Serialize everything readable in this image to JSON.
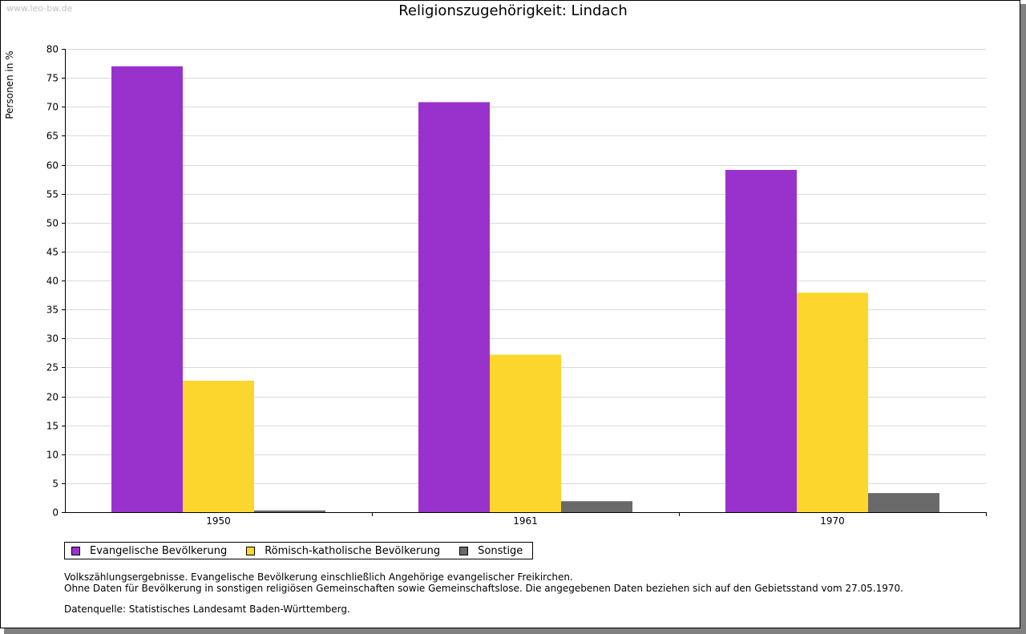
{
  "watermark": "www.leo-bw.de",
  "title": "Religionszugehörigkeit: Lindach",
  "notes": {
    "line1": "Volkszählungsergebnisse. Evangelische Bevölkerung einschließlich Angehörige evangelischer Freikirchen.",
    "line2": "Ohne Daten für Bevölkerung in sonstigen religiösen Gemeinschaften sowie Gemeinschaftslose. Die angegebenen Daten beziehen sich auf den Gebietsstand vom 27.05.1970.",
    "source": "Datenquelle: Statistisches Landesamt Baden-Württemberg."
  },
  "chart_data": {
    "type": "bar",
    "title": "Religionszugehörigkeit: Lindach",
    "xlabel": "",
    "ylabel": "Personen in %",
    "categories": [
      "1950",
      "1961",
      "1970"
    ],
    "series": [
      {
        "name": "Evangelische Bevölkerung",
        "color": "#9932cc",
        "values": [
          77.0,
          70.8,
          59.1
        ]
      },
      {
        "name": "Römisch-katholische Bevölkerung",
        "color": "#fcd62c",
        "values": [
          22.7,
          27.2,
          37.9
        ]
      },
      {
        "name": "Sonstige",
        "color": "#696969",
        "values": [
          0.3,
          1.9,
          3.3
        ]
      }
    ],
    "ylim": [
      0,
      80
    ],
    "yticks": [
      0,
      5,
      10,
      15,
      20,
      25,
      30,
      35,
      40,
      45,
      50,
      55,
      60,
      65,
      70,
      75,
      80
    ],
    "grid": true,
    "legend": "bottom-left"
  }
}
